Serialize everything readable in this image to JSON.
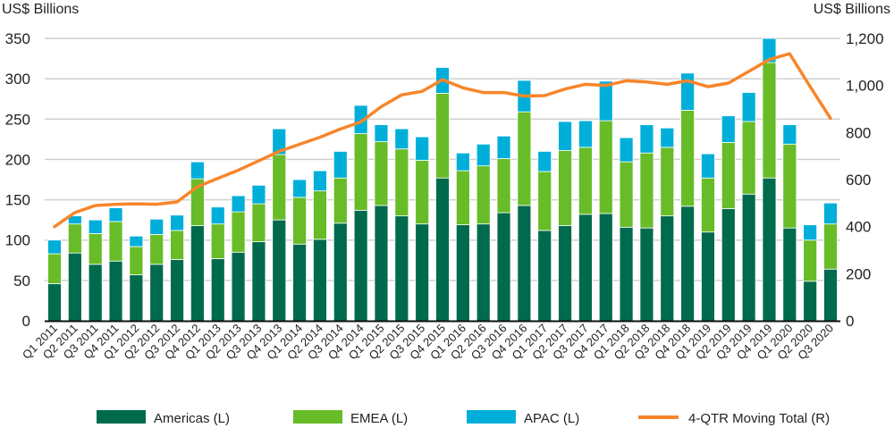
{
  "chart_data": {
    "type": "bar",
    "stacked": true,
    "left_axis_label": "US$ Billions",
    "right_axis_label": "US$ Billions",
    "ylim_left": [
      0,
      350
    ],
    "ylim_right": [
      0,
      1200
    ],
    "left_ticks": [
      "0",
      "50",
      "100",
      "150",
      "200",
      "250",
      "300",
      "350"
    ],
    "right_ticks": [
      "0",
      "200",
      "400",
      "600",
      "800",
      "1,000",
      "1,200"
    ],
    "grid": true,
    "legend_position": "bottom",
    "categories": [
      "Q1 2011",
      "Q2 2011",
      "Q3 2011",
      "Q4 2011",
      "Q1 2012",
      "Q2 2012",
      "Q3 2012",
      "Q4 2012",
      "Q1 2013",
      "Q2 2013",
      "Q3 2013",
      "Q4 2013",
      "Q1 2014",
      "Q2 2014",
      "Q3 2014",
      "Q4 2014",
      "Q1 2015",
      "Q2 2015",
      "Q3 2015",
      "Q4 2015",
      "Q1 2016",
      "Q2 2016",
      "Q3 2016",
      "Q4 2016",
      "Q1 2017",
      "Q2 2017",
      "Q3 2017",
      "Q4 2017",
      "Q1 2018",
      "Q2 2018",
      "Q3 2018",
      "Q4 2018",
      "Q1 2019",
      "Q2 2019",
      "Q3 2019",
      "Q4 2019",
      "Q1 2020",
      "Q2 2020",
      "Q3 2020"
    ],
    "series": [
      {
        "name": "Americas (L)",
        "axis": "left",
        "type": "bar",
        "color": "#006a4d",
        "values": [
          46,
          84,
          70,
          74,
          57,
          70,
          76,
          118,
          77,
          85,
          98,
          125,
          95,
          101,
          121,
          137,
          143,
          130,
          120,
          177,
          119,
          120,
          134,
          143,
          112,
          118,
          132,
          133,
          116,
          115,
          130,
          142,
          110,
          139,
          157,
          177,
          115,
          49,
          64
        ]
      },
      {
        "name": "EMEA (L)",
        "axis": "left",
        "type": "bar",
        "color": "#67bc27",
        "values": [
          37,
          36,
          38,
          49,
          35,
          37,
          36,
          58,
          43,
          50,
          47,
          81,
          58,
          60,
          56,
          95,
          79,
          83,
          79,
          105,
          67,
          72,
          67,
          116,
          73,
          93,
          83,
          115,
          81,
          93,
          85,
          119,
          67,
          82,
          90,
          143,
          104,
          51,
          56
        ]
      },
      {
        "name": "APAC (L)",
        "axis": "left",
        "type": "bar",
        "color": "#00afd9",
        "values": [
          17,
          10,
          17,
          17,
          13,
          19,
          19,
          21,
          21,
          20,
          23,
          32,
          22,
          25,
          33,
          35,
          21,
          25,
          29,
          32,
          22,
          27,
          28,
          39,
          25,
          36,
          33,
          49,
          30,
          35,
          24,
          46,
          30,
          33,
          36,
          30,
          24,
          19,
          26
        ]
      },
      {
        "name": "4-QTR Moving Total (R)",
        "axis": "right",
        "type": "line",
        "color": "#f7862a",
        "values": [
          400,
          460,
          490,
          495,
          497,
          495,
          505,
          570,
          605,
          640,
          680,
          720,
          750,
          780,
          815,
          845,
          910,
          960,
          975,
          1025,
          990,
          970,
          970,
          955,
          957,
          985,
          1005,
          1000,
          1020,
          1015,
          1005,
          1020,
          995,
          1010,
          1060,
          1110,
          1135,
          995,
          860
        ]
      }
    ]
  }
}
